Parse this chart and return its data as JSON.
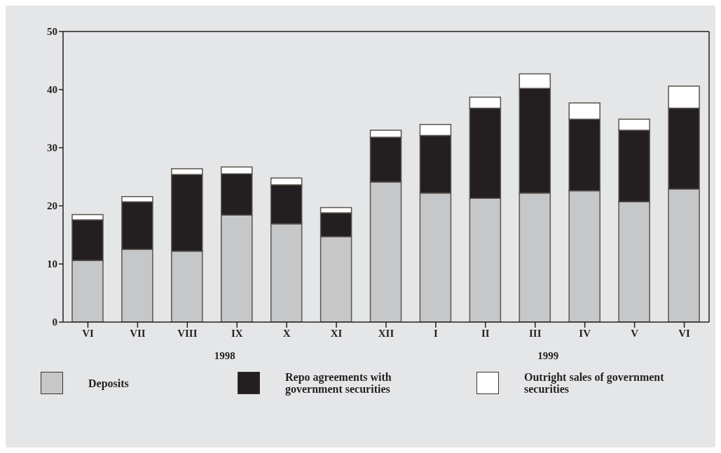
{
  "chart_data": {
    "type": "bar",
    "stacked": true,
    "categories": [
      "VI",
      "VII",
      "VIII",
      "IX",
      "X",
      "XI",
      "XII",
      "I",
      "II",
      "III",
      "IV",
      "V",
      "VI"
    ],
    "series": [
      {
        "name": "Deposits",
        "color": "#c6c7c9",
        "values": [
          10.6,
          12.5,
          12.2,
          18.4,
          16.9,
          14.7,
          24.1,
          22.2,
          21.3,
          22.2,
          22.6,
          20.7,
          22.9
        ]
      },
      {
        "name": "Repo agreements with government securities",
        "color": "#231f20",
        "values": [
          7.0,
          8.2,
          13.2,
          7.1,
          6.7,
          4.1,
          7.7,
          9.9,
          15.5,
          18.0,
          12.3,
          12.3,
          13.9
        ]
      },
      {
        "name": "Outright sales of government securities",
        "color": "#ffffff",
        "values": [
          0.9,
          0.9,
          1.0,
          1.2,
          1.2,
          0.9,
          1.2,
          1.9,
          1.9,
          2.5,
          2.8,
          1.9,
          3.8
        ]
      }
    ],
    "ylim": [
      0,
      50
    ],
    "yticks": [
      0,
      10,
      20,
      30,
      40,
      50
    ],
    "annotations": [
      "1998",
      "1999"
    ],
    "legend": "bottom"
  }
}
